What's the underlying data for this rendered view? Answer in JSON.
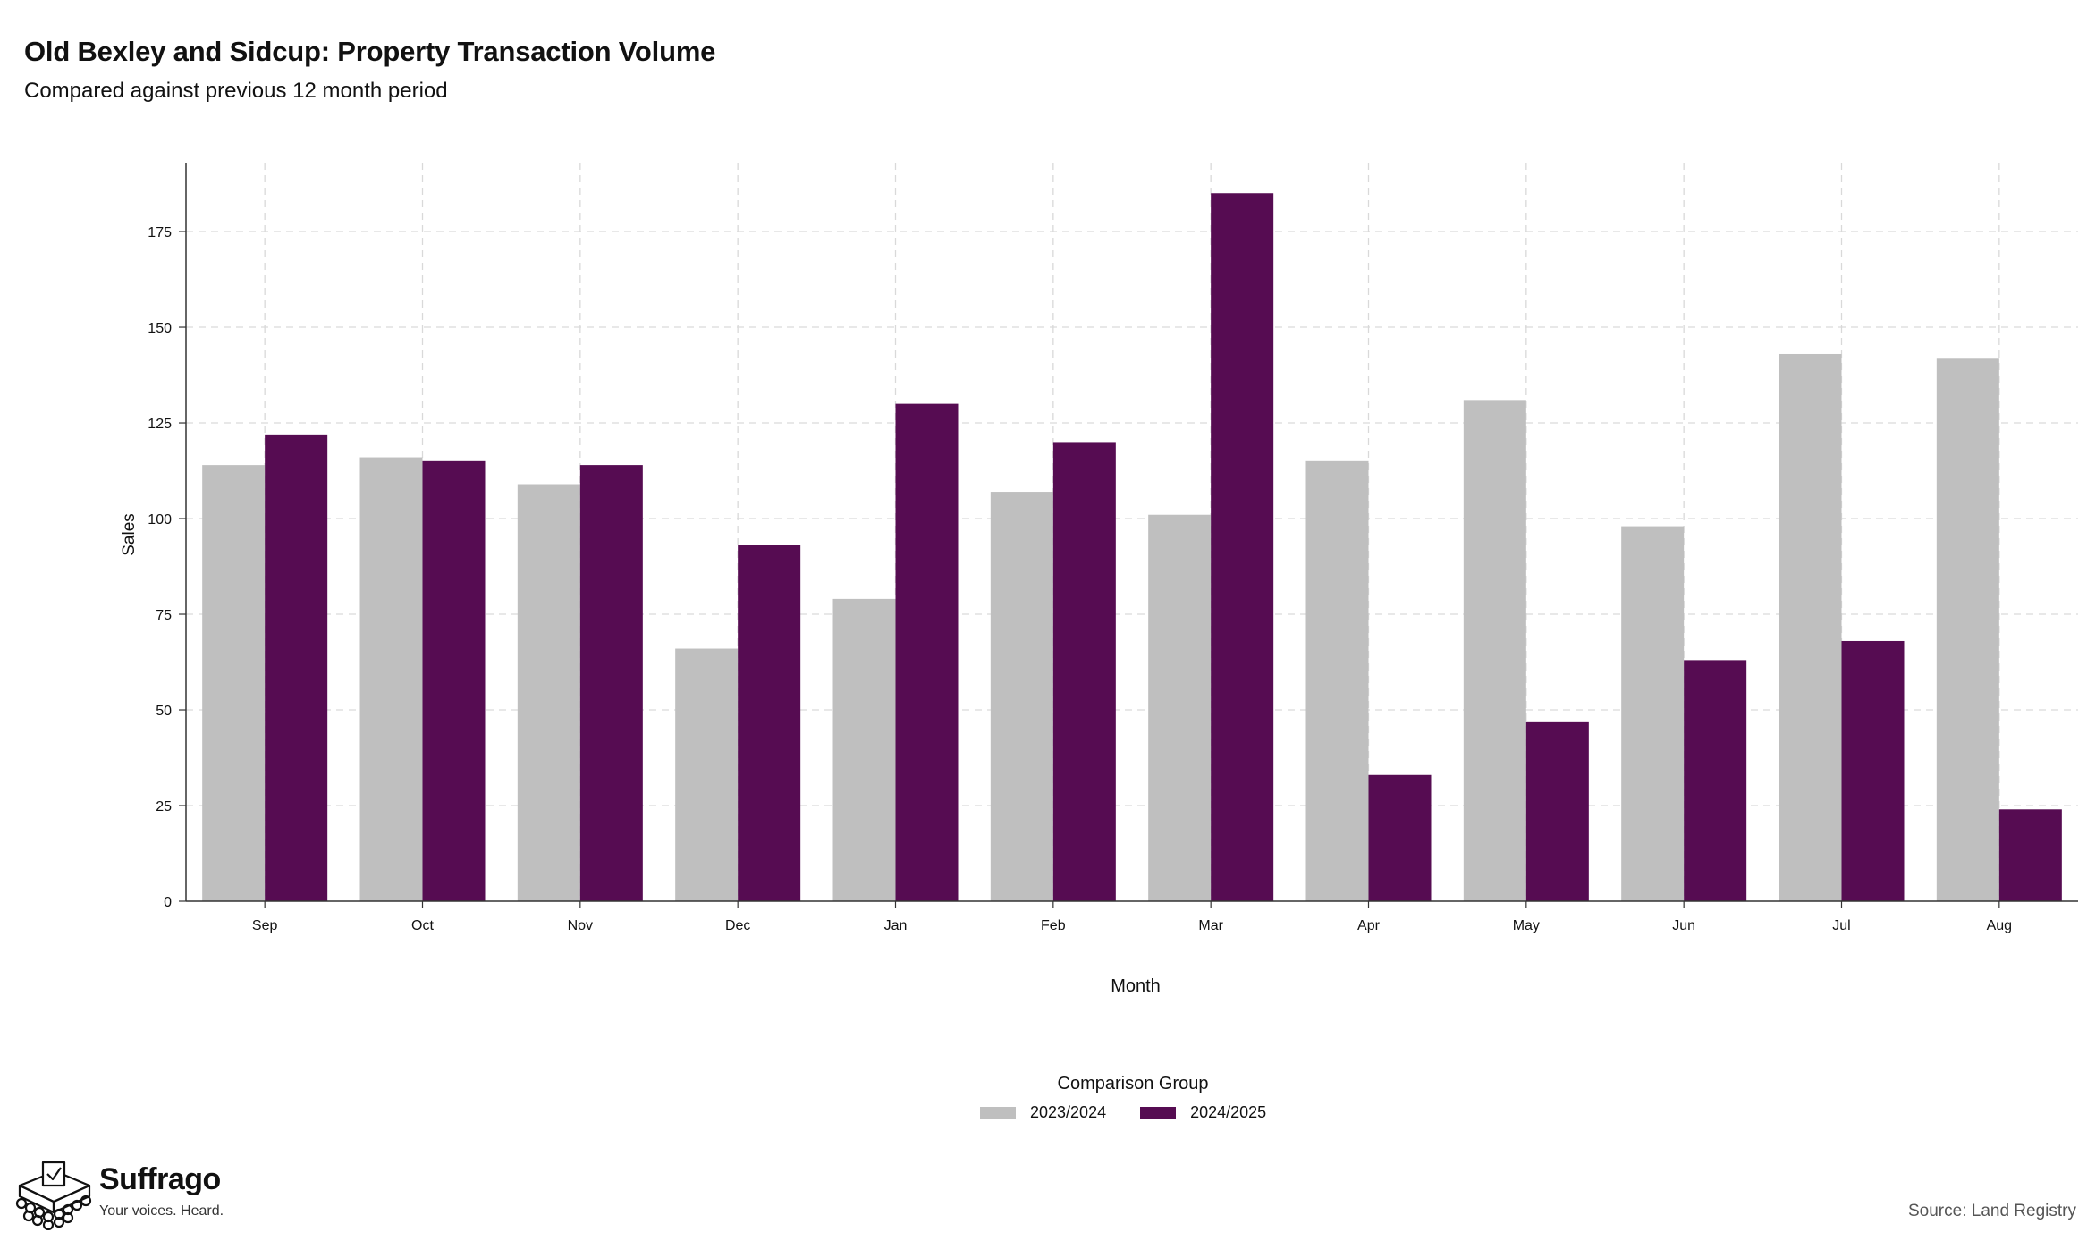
{
  "header": {
    "title": "Old Bexley and Sidcup: Property Transaction Volume",
    "subtitle": "Compared against previous 12 month period"
  },
  "legend": {
    "title": "Comparison Group",
    "items": [
      {
        "label": "2023/2024",
        "color": "#bfbfbf"
      },
      {
        "label": "2024/2025",
        "color": "#560c52"
      }
    ]
  },
  "brand": {
    "name": "Suffrago",
    "tagline": "Your voices. Heard.",
    "icon": "ballot-box-icon"
  },
  "source": "Source: Land Registry",
  "chart_data": {
    "type": "bar",
    "xlabel": "Month",
    "ylabel": "Sales",
    "categories": [
      "Sep",
      "Oct",
      "Nov",
      "Dec",
      "Jan",
      "Feb",
      "Mar",
      "Apr",
      "May",
      "Jun",
      "Jul",
      "Aug"
    ],
    "ylim": [
      0,
      193
    ],
    "yticks": [
      0,
      25,
      50,
      75,
      100,
      125,
      150,
      175
    ],
    "grid": true,
    "legend_position": "bottom",
    "series": [
      {
        "name": "2023/2024",
        "color": "#bfbfbf",
        "values": [
          114,
          116,
          109,
          66,
          79,
          107,
          101,
          115,
          131,
          98,
          143,
          142
        ]
      },
      {
        "name": "2024/2025",
        "color": "#560c52",
        "values": [
          122,
          115,
          114,
          93,
          130,
          120,
          185,
          33,
          47,
          63,
          68,
          24
        ]
      }
    ]
  }
}
